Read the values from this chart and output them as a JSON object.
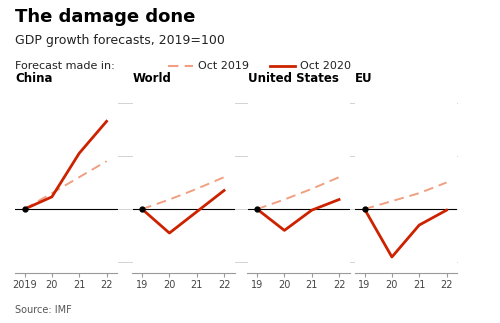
{
  "title": "The damage done",
  "subtitle": "GDP growth forecasts, 2019=100",
  "legend_label": "Forecast made in:",
  "legend_oct2019": "Oct 2019",
  "legend_oct2020": "Oct 2020",
  "source": "Source: IMF",
  "panels": [
    {
      "title": "China",
      "x_labels": [
        "2019",
        "20",
        "21",
        "22"
      ],
      "x_values": [
        2019,
        2020,
        2021,
        2022
      ],
      "oct2019": [
        100,
        103.0,
        106.0,
        109.0
      ],
      "oct2020": [
        100,
        102.3,
        110.5,
        116.5
      ]
    },
    {
      "title": "World",
      "x_labels": [
        "19",
        "20",
        "21",
        "22"
      ],
      "x_values": [
        2019,
        2020,
        2021,
        2022
      ],
      "oct2019": [
        100,
        101.8,
        103.8,
        106.0
      ],
      "oct2020": [
        100,
        95.5,
        99.5,
        103.5
      ]
    },
    {
      "title": "United States",
      "x_labels": [
        "19",
        "20",
        "21",
        "22"
      ],
      "x_values": [
        2019,
        2020,
        2021,
        2022
      ],
      "oct2019": [
        100,
        101.8,
        103.8,
        106.0
      ],
      "oct2020": [
        100,
        96.0,
        99.8,
        101.8
      ]
    },
    {
      "title": "EU",
      "x_labels": [
        "19",
        "20",
        "21",
        "22"
      ],
      "x_values": [
        2019,
        2020,
        2021,
        2022
      ],
      "oct2019": [
        100,
        101.5,
        103.0,
        105.0
      ],
      "oct2020": [
        100,
        91.0,
        97.0,
        99.8
      ]
    }
  ],
  "ylim": [
    88,
    122
  ],
  "yticks": [
    90,
    100,
    110,
    120
  ],
  "color_oct2019": "#F0A080",
  "color_oct2020": "#CC2200",
  "background_color": "#FFFFFF",
  "title_fontsize": 13,
  "subtitle_fontsize": 9,
  "panel_title_fontsize": 8.5,
  "tick_fontsize": 7,
  "source_fontsize": 7,
  "legend_fontsize": 8
}
